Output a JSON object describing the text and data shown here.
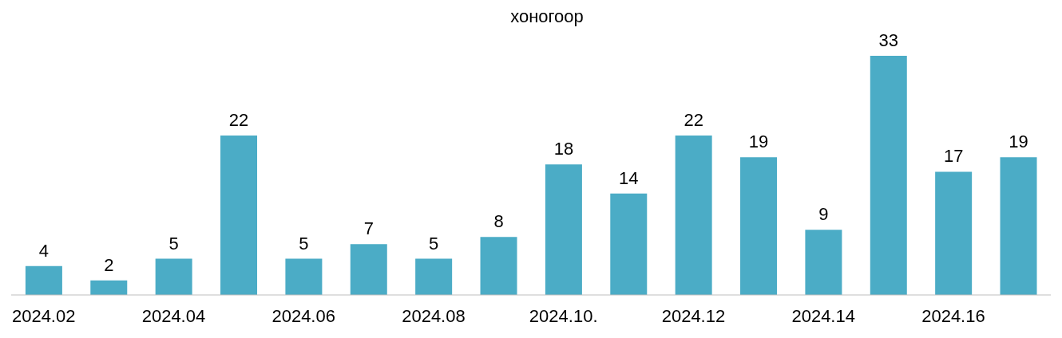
{
  "chart_data": {
    "type": "bar",
    "title": "хоногоор",
    "categories": [
      "2024.02",
      null,
      "2024.04",
      null,
      "2024.06",
      null,
      "2024.08",
      null,
      "2024.10.",
      null,
      "2024.12",
      null,
      "2024.14",
      null,
      "2024.16",
      null
    ],
    "values": [
      4,
      2,
      5,
      22,
      5,
      7,
      5,
      8,
      18,
      14,
      22,
      19,
      9,
      33,
      17,
      19
    ],
    "color": "#4bacc6",
    "data_labels": true,
    "tick_labels": "x",
    "grid": false
  }
}
